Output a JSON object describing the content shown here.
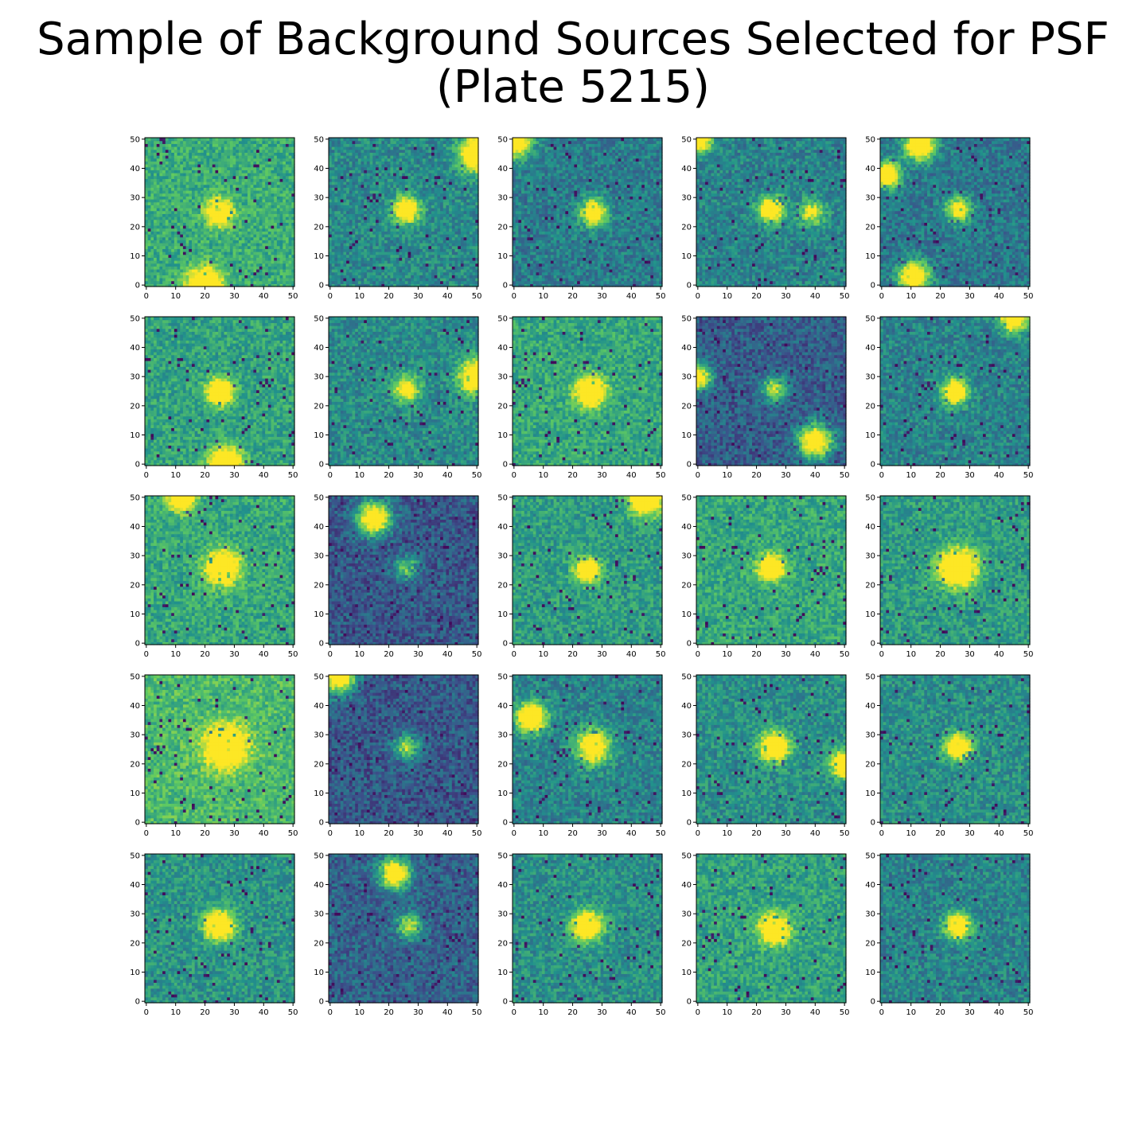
{
  "title_line1": "Sample of Background Sources Selected for PSF",
  "title_line2": "(Plate 5215)",
  "colormap": [
    "#440154",
    "#3b528b",
    "#21918c",
    "#5ec962",
    "#fde725"
  ],
  "chart_data": {
    "type": "heatmap",
    "title": "Sample of Background Sources Selected for PSF (Plate 5215)",
    "rows": 5,
    "cols": 5,
    "xlim": [
      0,
      50
    ],
    "ylim": [
      0,
      50
    ],
    "xticks": [
      0,
      10,
      20,
      30,
      40,
      50
    ],
    "yticks": [
      0,
      10,
      20,
      30,
      40,
      50
    ],
    "panels": [
      {
        "bg": 0.62,
        "sources": [
          [
            25,
            25,
            3.0,
            0.95
          ],
          [
            20,
            0,
            4.0,
            1.0
          ]
        ]
      },
      {
        "bg": 0.48,
        "sources": [
          [
            26,
            26,
            3.0,
            0.95
          ],
          [
            50,
            45,
            4.0,
            1.0
          ]
        ]
      },
      {
        "bg": 0.42,
        "sources": [
          [
            27,
            25,
            3.0,
            0.95
          ],
          [
            0,
            50,
            4.0,
            1.0
          ]
        ]
      },
      {
        "bg": 0.45,
        "sources": [
          [
            25,
            26,
            3.0,
            0.95
          ],
          [
            39,
            25,
            3.0,
            0.55
          ],
          [
            0,
            50,
            3.0,
            1.0
          ]
        ]
      },
      {
        "bg": 0.4,
        "sources": [
          [
            26,
            26,
            3.0,
            0.75
          ],
          [
            13,
            48,
            3.5,
            1.0
          ],
          [
            2,
            38,
            3.0,
            1.0
          ],
          [
            11,
            3,
            3.5,
            1.0
          ]
        ]
      },
      {
        "bg": 0.58,
        "sources": [
          [
            25,
            25,
            3.0,
            0.95
          ],
          [
            27,
            0,
            4.0,
            1.0
          ]
        ]
      },
      {
        "bg": 0.48,
        "sources": [
          [
            26,
            26,
            3.0,
            0.7
          ],
          [
            50,
            30,
            4.0,
            1.0
          ]
        ]
      },
      {
        "bg": 0.6,
        "sources": [
          [
            26,
            25,
            3.5,
            0.9
          ]
        ]
      },
      {
        "bg": 0.3,
        "sources": [
          [
            26,
            26,
            3.0,
            0.6
          ],
          [
            40,
            8,
            4.0,
            1.0
          ],
          [
            0,
            30,
            3.0,
            1.0
          ]
        ]
      },
      {
        "bg": 0.45,
        "sources": [
          [
            25,
            25,
            3.0,
            0.95
          ],
          [
            45,
            50,
            3.0,
            1.0
          ]
        ]
      },
      {
        "bg": 0.6,
        "sources": [
          [
            26,
            26,
            4.0,
            0.9
          ],
          [
            12,
            50,
            3.0,
            1.0
          ]
        ]
      },
      {
        "bg": 0.28,
        "sources": [
          [
            26,
            26,
            3.0,
            0.5
          ],
          [
            15,
            43,
            4.0,
            1.0
          ]
        ]
      },
      {
        "bg": 0.55,
        "sources": [
          [
            25,
            25,
            3.0,
            0.85
          ],
          [
            45,
            50,
            4.0,
            1.0
          ]
        ]
      },
      {
        "bg": 0.6,
        "sources": [
          [
            25,
            26,
            3.0,
            0.9
          ]
        ]
      },
      {
        "bg": 0.55,
        "sources": [
          [
            26,
            26,
            4.5,
            0.95
          ]
        ]
      },
      {
        "bg": 0.68,
        "sources": [
          [
            27,
            26,
            5.0,
            0.85
          ]
        ]
      },
      {
        "bg": 0.28,
        "sources": [
          [
            26,
            26,
            3.0,
            0.6
          ],
          [
            3,
            50,
            4.0,
            1.0
          ]
        ]
      },
      {
        "bg": 0.45,
        "sources": [
          [
            27,
            26,
            4.0,
            0.85
          ],
          [
            6,
            36,
            3.5,
            1.0
          ]
        ]
      },
      {
        "bg": 0.5,
        "sources": [
          [
            26,
            26,
            3.5,
            0.95
          ],
          [
            50,
            20,
            3.0,
            1.0
          ]
        ]
      },
      {
        "bg": 0.5,
        "sources": [
          [
            26,
            26,
            3.0,
            0.95
          ]
        ]
      },
      {
        "bg": 0.52,
        "sources": [
          [
            25,
            26,
            3.5,
            0.95
          ]
        ]
      },
      {
        "bg": 0.32,
        "sources": [
          [
            27,
            26,
            3.0,
            0.6
          ],
          [
            22,
            44,
            3.5,
            1.0
          ]
        ]
      },
      {
        "bg": 0.5,
        "sources": [
          [
            25,
            26,
            3.5,
            0.95
          ]
        ]
      },
      {
        "bg": 0.58,
        "sources": [
          [
            26,
            25,
            3.5,
            0.95
          ]
        ]
      },
      {
        "bg": 0.45,
        "sources": [
          [
            26,
            26,
            3.0,
            0.95
          ]
        ]
      }
    ]
  }
}
